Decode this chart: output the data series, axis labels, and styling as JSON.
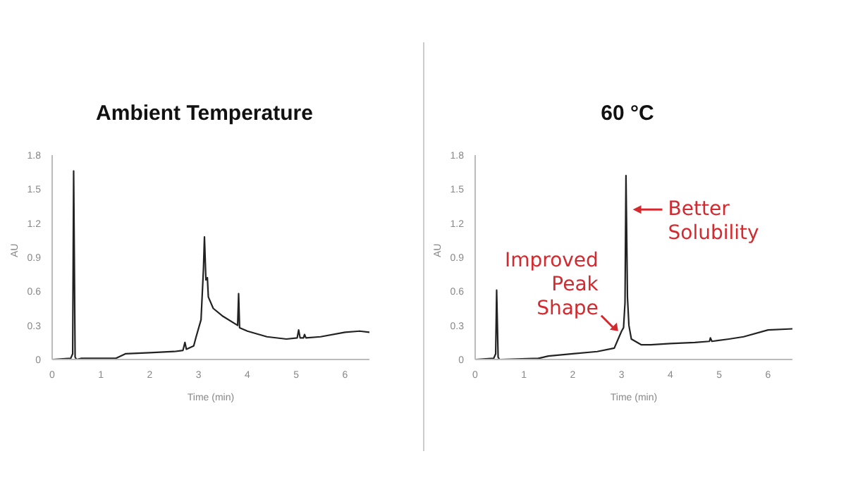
{
  "chart_data": [
    {
      "type": "line",
      "title": "Ambient Temperature",
      "xlabel": "Time (min)",
      "ylabel": "AU",
      "xlim": [
        0,
        6.5
      ],
      "xticks": [
        0,
        1,
        2,
        3,
        4,
        5,
        6
      ],
      "ylim": [
        0,
        1.8
      ],
      "yticks": [
        0,
        0.3,
        0.6,
        0.9,
        1.2,
        1.5,
        1.8
      ],
      "grid": false,
      "legend": false,
      "marker": "none",
      "line_style": "solid",
      "series": [
        {
          "color": "#222222",
          "x": [
            0,
            0.38,
            0.42,
            0.44,
            0.47,
            0.5,
            0.6,
            1.3,
            1.5,
            2,
            2.5,
            2.68,
            2.72,
            2.75,
            2.9,
            2.95,
            3.05,
            3.1,
            3.12,
            3.15,
            3.18,
            3.2,
            3.3,
            3.5,
            3.8,
            3.82,
            3.84,
            4,
            4.4,
            4.8,
            5.02,
            5.05,
            5.08,
            5.15,
            5.17,
            5.2,
            5.5,
            6,
            6.3,
            6.5
          ],
          "values": [
            0,
            0.01,
            0.05,
            1.66,
            0.02,
            0,
            0.01,
            0.01,
            0.05,
            0.06,
            0.07,
            0.08,
            0.15,
            0.09,
            0.12,
            0.2,
            0.35,
            0.8,
            1.08,
            0.7,
            0.72,
            0.55,
            0.45,
            0.38,
            0.3,
            0.58,
            0.28,
            0.25,
            0.2,
            0.18,
            0.19,
            0.26,
            0.19,
            0.19,
            0.22,
            0.19,
            0.2,
            0.24,
            0.25,
            0.24
          ]
        }
      ]
    },
    {
      "type": "line",
      "title": "60 °C",
      "xlabel": "Time (min)",
      "ylabel": "AU",
      "xlim": [
        0,
        6.5
      ],
      "xticks": [
        0,
        1,
        2,
        3,
        4,
        5,
        6
      ],
      "ylim": [
        0,
        1.8
      ],
      "yticks": [
        0,
        0.3,
        0.6,
        0.9,
        1.2,
        1.5,
        1.8
      ],
      "grid": false,
      "legend": false,
      "marker": "none",
      "line_style": "solid",
      "annotations": [
        {
          "text": "Better Solubility",
          "x": 3.2,
          "y": 1.32
        },
        {
          "text": "Improved Peak Shape",
          "x": 2.93,
          "y": 0.25
        }
      ],
      "series": [
        {
          "color": "#222222",
          "x": [
            0,
            0.38,
            0.42,
            0.44,
            0.47,
            0.5,
            1.3,
            1.5,
            2,
            2.5,
            2.85,
            2.95,
            3,
            3.04,
            3.07,
            3.09,
            3.12,
            3.15,
            3.2,
            3.4,
            3.6,
            4,
            4.5,
            4.8,
            4.82,
            4.85,
            5.2,
            5.5,
            6,
            6.5
          ],
          "values": [
            0,
            0.01,
            0.05,
            0.61,
            0.02,
            0,
            0.01,
            0.03,
            0.05,
            0.07,
            0.1,
            0.2,
            0.25,
            0.28,
            0.5,
            1.62,
            0.55,
            0.3,
            0.18,
            0.13,
            0.13,
            0.14,
            0.15,
            0.16,
            0.19,
            0.16,
            0.18,
            0.2,
            0.26,
            0.27
          ]
        }
      ]
    }
  ]
}
